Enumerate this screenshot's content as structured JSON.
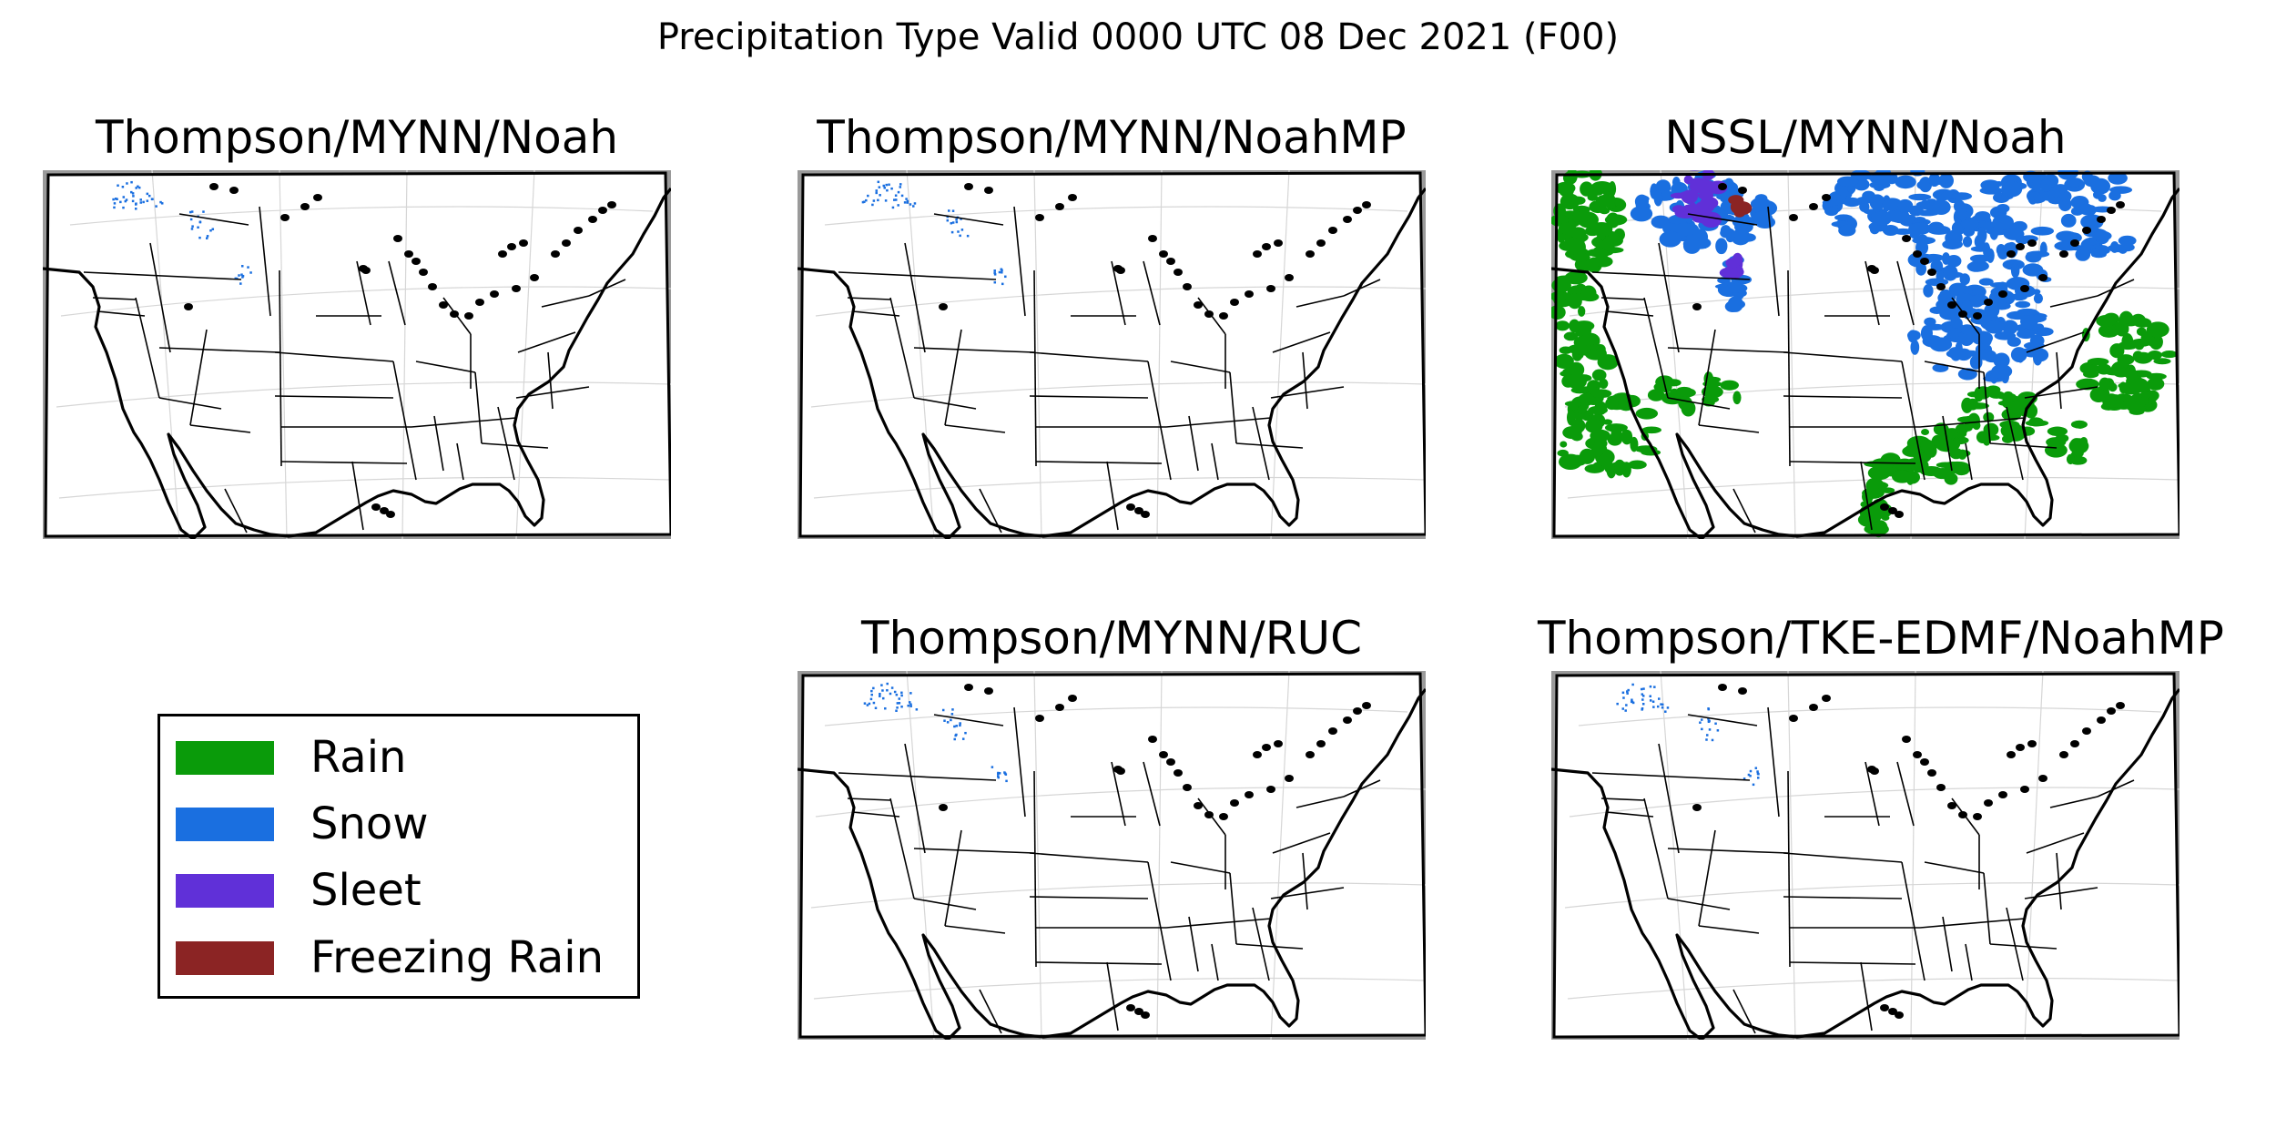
{
  "title": "Precipitation Type Valid 0000 UTC 08 Dec 2021 (F00)",
  "panels": [
    {
      "title": "Thompson/MYNN/Noah",
      "precip_coverage": "isolated"
    },
    {
      "title": "Thompson/MYNN/NoahMP",
      "precip_coverage": "isolated"
    },
    {
      "title": "NSSL/MYNN/Noah",
      "precip_coverage": "widespread"
    },
    {
      "title": "Thompson/MYNN/RUC",
      "precip_coverage": "isolated"
    },
    {
      "title": "Thompson/TKE-EDMF/NoahMP",
      "precip_coverage": "isolated"
    }
  ],
  "legend": [
    {
      "label": "Rain",
      "color": "#0a9b0a"
    },
    {
      "label": "Snow",
      "color": "#1a6fe0"
    },
    {
      "label": "Sleet",
      "color": "#6030d8"
    },
    {
      "label": "Freezing Rain",
      "color": "#8b2424"
    }
  ]
}
